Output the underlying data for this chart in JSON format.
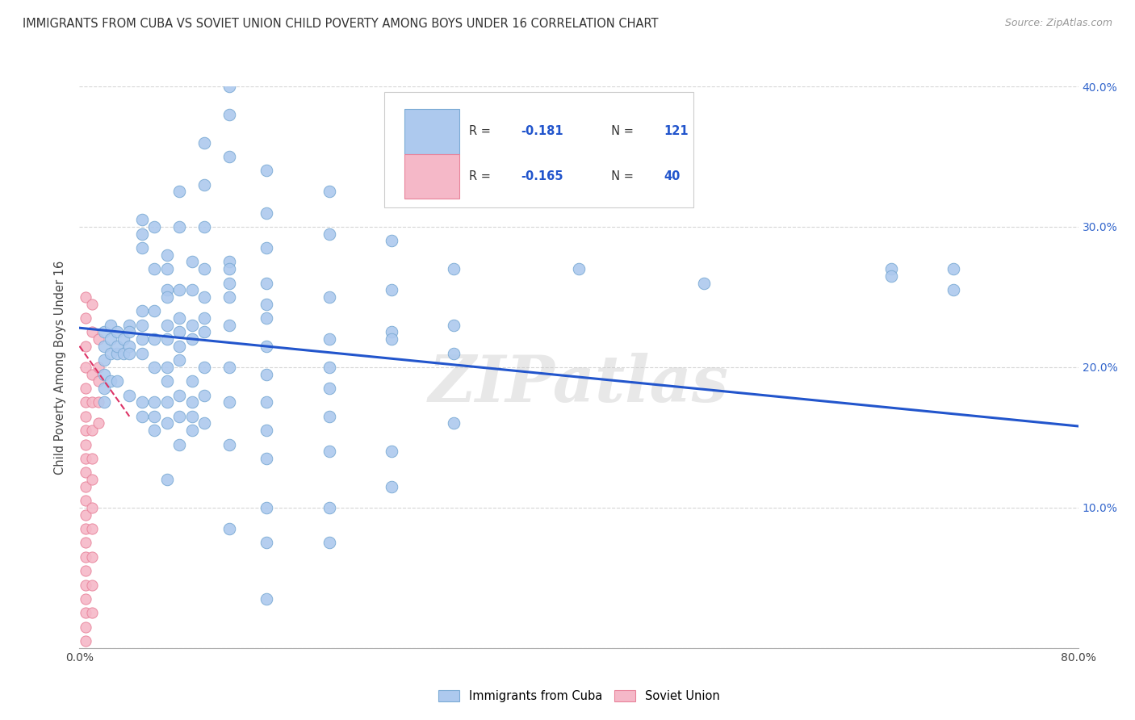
{
  "title": "IMMIGRANTS FROM CUBA VS SOVIET UNION CHILD POVERTY AMONG BOYS UNDER 16 CORRELATION CHART",
  "source": "Source: ZipAtlas.com",
  "ylabel": "Child Poverty Among Boys Under 16",
  "xlim": [
    0,
    0.8
  ],
  "ylim": [
    0,
    0.4
  ],
  "xtick_positions": [
    0.0,
    0.1,
    0.2,
    0.3,
    0.4,
    0.5,
    0.6,
    0.7,
    0.8
  ],
  "xticklabels": [
    "0.0%",
    "",
    "",
    "",
    "",
    "",
    "",
    "",
    "80.0%"
  ],
  "ytick_positions": [
    0.0,
    0.1,
    0.2,
    0.3,
    0.4
  ],
  "ytick_labels_right": [
    "",
    "10.0%",
    "20.0%",
    "30.0%",
    "40.0%"
  ],
  "cuba_color": "#adc9ee",
  "cuba_edge_color": "#7aaad4",
  "soviet_color": "#f5b8c8",
  "soviet_edge_color": "#e8829a",
  "trend_cuba_color": "#2255cc",
  "trend_soviet_color": "#dd3366",
  "legend_label_cuba": "Immigrants from Cuba",
  "legend_label_soviet": "Soviet Union",
  "watermark": "ZIPatlas",
  "cuba_points": [
    [
      0.02,
      0.215
    ],
    [
      0.02,
      0.205
    ],
    [
      0.02,
      0.195
    ],
    [
      0.02,
      0.185
    ],
    [
      0.02,
      0.175
    ],
    [
      0.02,
      0.225
    ],
    [
      0.025,
      0.21
    ],
    [
      0.025,
      0.22
    ],
    [
      0.025,
      0.19
    ],
    [
      0.025,
      0.23
    ],
    [
      0.03,
      0.21
    ],
    [
      0.03,
      0.225
    ],
    [
      0.03,
      0.215
    ],
    [
      0.03,
      0.19
    ],
    [
      0.035,
      0.22
    ],
    [
      0.035,
      0.21
    ],
    [
      0.04,
      0.23
    ],
    [
      0.04,
      0.215
    ],
    [
      0.04,
      0.225
    ],
    [
      0.04,
      0.21
    ],
    [
      0.04,
      0.18
    ],
    [
      0.05,
      0.295
    ],
    [
      0.05,
      0.305
    ],
    [
      0.05,
      0.285
    ],
    [
      0.05,
      0.24
    ],
    [
      0.05,
      0.23
    ],
    [
      0.05,
      0.22
    ],
    [
      0.05,
      0.21
    ],
    [
      0.05,
      0.175
    ],
    [
      0.05,
      0.165
    ],
    [
      0.06,
      0.3
    ],
    [
      0.06,
      0.27
    ],
    [
      0.06,
      0.24
    ],
    [
      0.06,
      0.22
    ],
    [
      0.06,
      0.2
    ],
    [
      0.06,
      0.175
    ],
    [
      0.06,
      0.165
    ],
    [
      0.06,
      0.155
    ],
    [
      0.07,
      0.28
    ],
    [
      0.07,
      0.27
    ],
    [
      0.07,
      0.255
    ],
    [
      0.07,
      0.25
    ],
    [
      0.07,
      0.23
    ],
    [
      0.07,
      0.22
    ],
    [
      0.07,
      0.2
    ],
    [
      0.07,
      0.19
    ],
    [
      0.07,
      0.175
    ],
    [
      0.07,
      0.16
    ],
    [
      0.07,
      0.12
    ],
    [
      0.08,
      0.325
    ],
    [
      0.08,
      0.3
    ],
    [
      0.08,
      0.255
    ],
    [
      0.08,
      0.235
    ],
    [
      0.08,
      0.225
    ],
    [
      0.08,
      0.215
    ],
    [
      0.08,
      0.205
    ],
    [
      0.08,
      0.18
    ],
    [
      0.08,
      0.165
    ],
    [
      0.08,
      0.145
    ],
    [
      0.09,
      0.275
    ],
    [
      0.09,
      0.255
    ],
    [
      0.09,
      0.23
    ],
    [
      0.09,
      0.22
    ],
    [
      0.09,
      0.19
    ],
    [
      0.09,
      0.175
    ],
    [
      0.09,
      0.165
    ],
    [
      0.09,
      0.155
    ],
    [
      0.1,
      0.36
    ],
    [
      0.1,
      0.33
    ],
    [
      0.1,
      0.3
    ],
    [
      0.1,
      0.27
    ],
    [
      0.1,
      0.25
    ],
    [
      0.1,
      0.235
    ],
    [
      0.1,
      0.225
    ],
    [
      0.1,
      0.2
    ],
    [
      0.1,
      0.18
    ],
    [
      0.1,
      0.16
    ],
    [
      0.12,
      0.4
    ],
    [
      0.12,
      0.38
    ],
    [
      0.12,
      0.35
    ],
    [
      0.12,
      0.275
    ],
    [
      0.12,
      0.27
    ],
    [
      0.12,
      0.26
    ],
    [
      0.12,
      0.25
    ],
    [
      0.12,
      0.23
    ],
    [
      0.12,
      0.2
    ],
    [
      0.12,
      0.175
    ],
    [
      0.12,
      0.145
    ],
    [
      0.12,
      0.085
    ],
    [
      0.15,
      0.34
    ],
    [
      0.15,
      0.31
    ],
    [
      0.15,
      0.285
    ],
    [
      0.15,
      0.26
    ],
    [
      0.15,
      0.245
    ],
    [
      0.15,
      0.235
    ],
    [
      0.15,
      0.215
    ],
    [
      0.15,
      0.195
    ],
    [
      0.15,
      0.175
    ],
    [
      0.15,
      0.155
    ],
    [
      0.15,
      0.135
    ],
    [
      0.15,
      0.1
    ],
    [
      0.15,
      0.075
    ],
    [
      0.15,
      0.035
    ],
    [
      0.2,
      0.325
    ],
    [
      0.2,
      0.295
    ],
    [
      0.2,
      0.25
    ],
    [
      0.2,
      0.22
    ],
    [
      0.2,
      0.2
    ],
    [
      0.2,
      0.185
    ],
    [
      0.2,
      0.165
    ],
    [
      0.2,
      0.14
    ],
    [
      0.2,
      0.1
    ],
    [
      0.2,
      0.075
    ],
    [
      0.25,
      0.32
    ],
    [
      0.25,
      0.29
    ],
    [
      0.25,
      0.255
    ],
    [
      0.25,
      0.225
    ],
    [
      0.25,
      0.22
    ],
    [
      0.25,
      0.14
    ],
    [
      0.25,
      0.115
    ],
    [
      0.3,
      0.32
    ],
    [
      0.3,
      0.27
    ],
    [
      0.3,
      0.23
    ],
    [
      0.3,
      0.21
    ],
    [
      0.3,
      0.16
    ],
    [
      0.4,
      0.27
    ],
    [
      0.5,
      0.26
    ],
    [
      0.65,
      0.27
    ],
    [
      0.65,
      0.265
    ],
    [
      0.7,
      0.27
    ],
    [
      0.7,
      0.255
    ]
  ],
  "soviet_points": [
    [
      0.005,
      0.25
    ],
    [
      0.005,
      0.235
    ],
    [
      0.005,
      0.215
    ],
    [
      0.005,
      0.2
    ],
    [
      0.005,
      0.185
    ],
    [
      0.005,
      0.175
    ],
    [
      0.005,
      0.165
    ],
    [
      0.005,
      0.155
    ],
    [
      0.005,
      0.145
    ],
    [
      0.005,
      0.135
    ],
    [
      0.005,
      0.125
    ],
    [
      0.005,
      0.115
    ],
    [
      0.005,
      0.105
    ],
    [
      0.005,
      0.095
    ],
    [
      0.005,
      0.085
    ],
    [
      0.005,
      0.075
    ],
    [
      0.005,
      0.065
    ],
    [
      0.005,
      0.055
    ],
    [
      0.005,
      0.045
    ],
    [
      0.005,
      0.035
    ],
    [
      0.005,
      0.025
    ],
    [
      0.005,
      0.015
    ],
    [
      0.005,
      0.005
    ],
    [
      0.01,
      0.245
    ],
    [
      0.01,
      0.225
    ],
    [
      0.01,
      0.195
    ],
    [
      0.01,
      0.175
    ],
    [
      0.01,
      0.155
    ],
    [
      0.01,
      0.135
    ],
    [
      0.01,
      0.12
    ],
    [
      0.01,
      0.1
    ],
    [
      0.01,
      0.085
    ],
    [
      0.01,
      0.065
    ],
    [
      0.01,
      0.045
    ],
    [
      0.01,
      0.025
    ],
    [
      0.015,
      0.22
    ],
    [
      0.015,
      0.2
    ],
    [
      0.015,
      0.19
    ],
    [
      0.015,
      0.175
    ],
    [
      0.015,
      0.16
    ]
  ],
  "cuba_trend_x": [
    0.0,
    0.8
  ],
  "cuba_trend_y": [
    0.228,
    0.158
  ],
  "soviet_trend_x": [
    0.0,
    0.04
  ],
  "soviet_trend_y": [
    0.215,
    0.165
  ]
}
